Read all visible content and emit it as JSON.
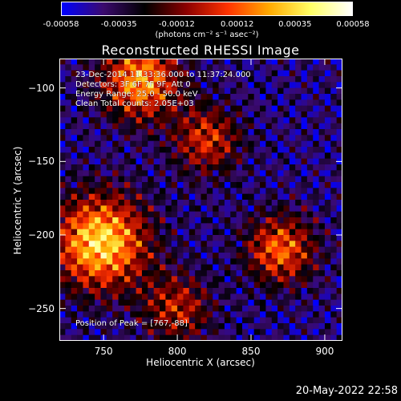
{
  "colorbar": {
    "tick_labels": [
      "-0.00058",
      "-0.00035",
      "-0.00012",
      "0.00012",
      "0.00035",
      "0.00058"
    ],
    "tick_values": [
      -0.00058,
      -0.00035,
      -0.00012,
      0.00012,
      0.00035,
      0.00058
    ],
    "range": [
      -0.00058,
      0.00058
    ],
    "units": "(photons cm⁻² s⁻¹ asec⁻²)",
    "colormap": [
      "#0000ff",
      "#3b0a6e",
      "#000000",
      "#8b0000",
      "#ff3300",
      "#ffaa00",
      "#ffff66",
      "#ffffff"
    ]
  },
  "annotations": [
    "23-Dec-2014 11:33:36.000 to 11:37:24.000",
    "Detectors: 3F 6F 7F 9F, Att 0",
    "Energy Range: 25.0 - 50.0 keV",
    "Clean     Total counts: 2.05E+03"
  ],
  "peak_label": "Position of Peak = [767,-88]",
  "timestamp": "20-May-2022 22:58",
  "chart_data": {
    "type": "heatmap",
    "title": "Reconstructed RHESSI Image",
    "xlabel": "Heliocentric X (arcsec)",
    "ylabel": "Heliocentric Y (arcsec)",
    "xlim": [
      720,
      912
    ],
    "ylim": [
      -272,
      -80
    ],
    "xticks": [
      750,
      800,
      850,
      900
    ],
    "yticks": [
      -100,
      -150,
      -200,
      -250
    ],
    "xtick_labels": [
      "750",
      "800",
      "850",
      "900"
    ],
    "ytick_labels": [
      "−100",
      "−150",
      "−200",
      "−250"
    ],
    "sources": [
      {
        "x": 748,
        "y": -205,
        "relative_intensity": 1.0,
        "sigma_arcsec": 22
      },
      {
        "x": 775,
        "y": -95,
        "relative_intensity": 0.85,
        "sigma_arcsec": 18
      },
      {
        "x": 870,
        "y": -210,
        "relative_intensity": 0.7,
        "sigma_arcsec": 16
      },
      {
        "x": 820,
        "y": -135,
        "relative_intensity": 0.55,
        "sigma_arcsec": 16
      },
      {
        "x": 800,
        "y": -250,
        "relative_intensity": 0.5,
        "sigma_arcsec": 16
      }
    ],
    "peak_position": [
      767,
      -88
    ]
  }
}
